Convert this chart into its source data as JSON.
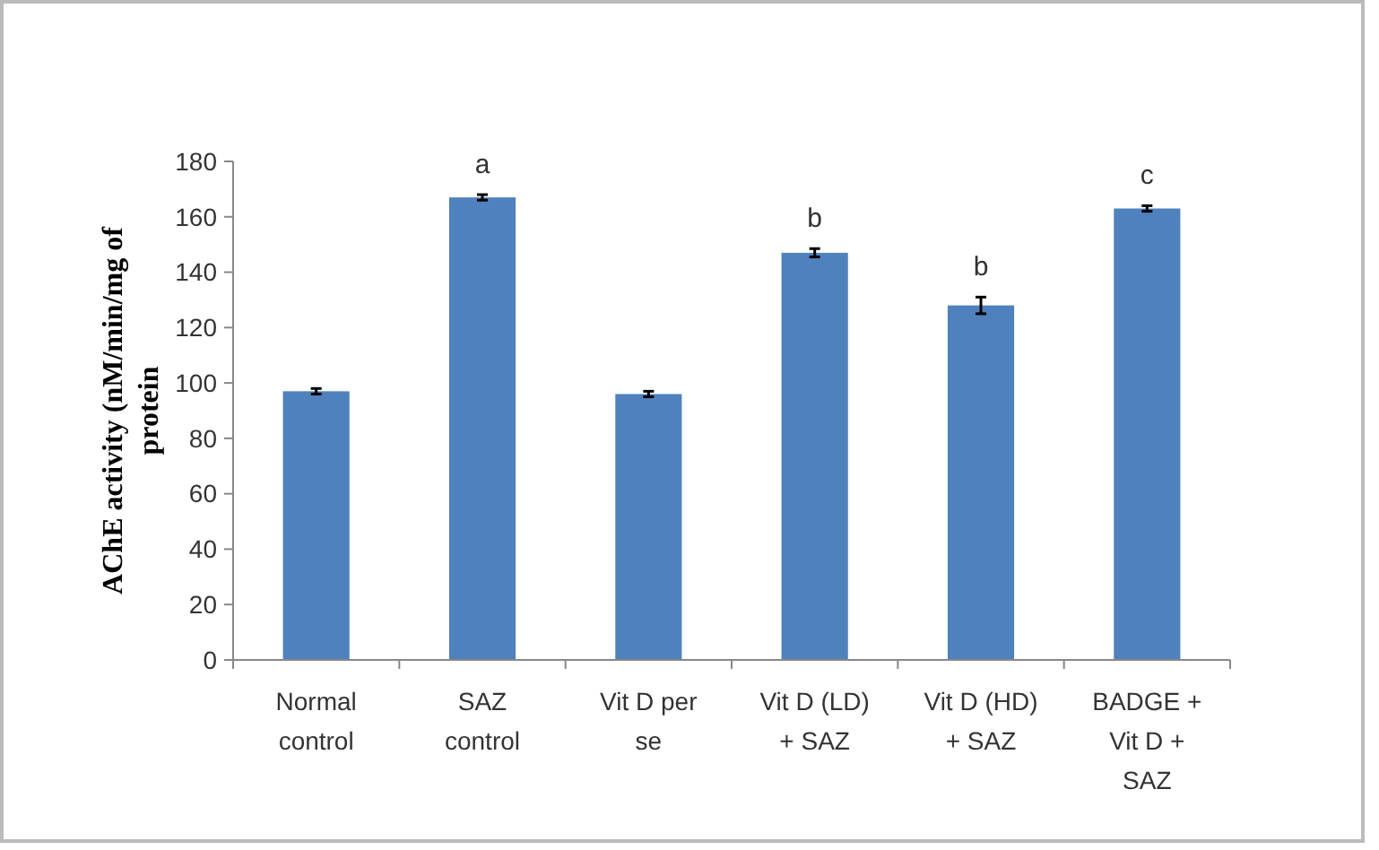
{
  "chart_data": {
    "type": "bar",
    "ylabel": "AChE activity (nM/min/mg of protein",
    "categories": [
      "Normal control",
      "SAZ control",
      "Vit D per se",
      "Vit D (LD) + SAZ",
      "Vit D (HD) + SAZ",
      "BADGE + Vit D + SAZ"
    ],
    "values": [
      97,
      167,
      96,
      147,
      128,
      163
    ],
    "errors": [
      1,
      1,
      1,
      1.5,
      3,
      1
    ],
    "color": "#4f81bd",
    "ylim": [
      0,
      180
    ],
    "yticks": [
      0,
      20,
      40,
      60,
      80,
      100,
      120,
      140,
      160,
      180
    ],
    "annotations": [
      {
        "text": "a",
        "x": "SAZ control",
        "y": 167
      },
      {
        "text": "b",
        "x": "Vit D (LD) + SAZ",
        "y": 147
      },
      {
        "text": "b",
        "x": "Vit D (HD) + SAZ",
        "y": 128
      },
      {
        "text": "c",
        "x": "BADGE + Vit D + SAZ",
        "y": 163
      }
    ],
    "grid": false
  }
}
